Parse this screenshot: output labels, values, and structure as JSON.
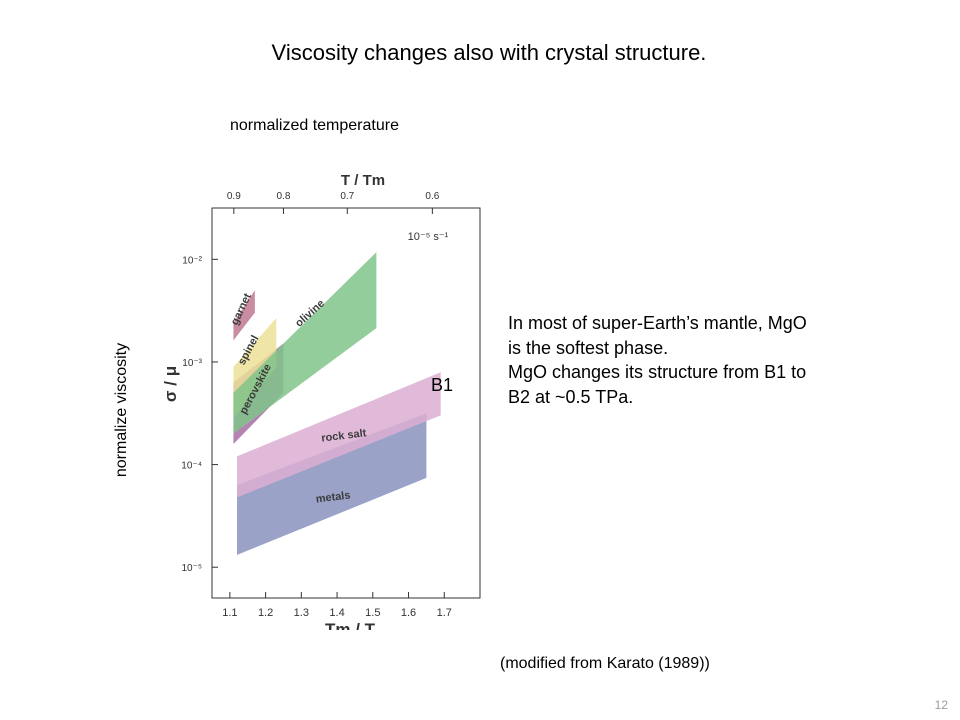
{
  "slide": {
    "title": "Viscosity changes also with crystal structure.",
    "annotation_top": "normalized temperature",
    "annotation_left": "normalize viscosity",
    "annotation_b1": "B1",
    "body_lines": [
      "In most of super-Earth’s mantle, MgO",
      "is the softest phase.",
      "MgO changes its structure from B1 to",
      "B2 at ~0.5 TPa."
    ],
    "source": "(modified from Karato (1989))",
    "page_number": "12"
  },
  "chart_data": {
    "type": "area",
    "xlabel": "Tm / T",
    "ylabel": "σ / μ",
    "top_axis_label": "T / Tm",
    "strain_rate_label": "10⁻⁵ s⁻¹",
    "xlim": [
      1.05,
      1.8
    ],
    "ylim": [
      -5.3,
      -1.5
    ],
    "y_log": true,
    "x_ticks": [
      "1.1",
      "1.2",
      "1.3",
      "1.4",
      "1.5",
      "1.6",
      "1.7"
    ],
    "y_ticks": [
      {
        "exp": -2,
        "label": "10⁻²"
      },
      {
        "exp": -3,
        "label": "10⁻³"
      },
      {
        "exp": -4,
        "label": "10⁻⁴"
      },
      {
        "exp": -5,
        "label": "10⁻⁵"
      }
    ],
    "top_ticks": [
      "0.9",
      "0.8",
      "0.7",
      "0.6"
    ],
    "series": [
      {
        "name": "metals",
        "color": "#8892bd",
        "x": [
          1.12,
          1.65
        ],
        "lower": [
          -4.88,
          -4.13
        ],
        "upper": [
          -4.2,
          -3.5
        ]
      },
      {
        "name": "rock salt",
        "color": "#ddaed2",
        "x": [
          1.12,
          1.69
        ],
        "lower": [
          -4.32,
          -3.52
        ],
        "upper": [
          -3.92,
          -3.1
        ]
      },
      {
        "name": "perovskite",
        "color": "#a86ca6",
        "x": [
          1.11,
          1.25
        ],
        "lower": [
          -3.8,
          -3.3
        ],
        "upper": [
          -3.2,
          -2.82
        ]
      },
      {
        "name": "spinel",
        "color": "#ece196",
        "x": [
          1.11,
          1.23
        ],
        "lower": [
          -3.55,
          -3.05
        ],
        "upper": [
          -3.05,
          -2.57
        ]
      },
      {
        "name": "olivine",
        "color": "#80c489",
        "x": [
          1.11,
          1.51
        ],
        "lower": [
          -3.7,
          -2.67
        ],
        "upper": [
          -3.3,
          -1.93
        ]
      },
      {
        "name": "garnet",
        "color": "#c07892",
        "x": [
          1.11,
          1.17
        ],
        "lower": [
          -2.79,
          -2.52
        ],
        "upper": [
          -2.62,
          -2.3
        ]
      }
    ]
  }
}
